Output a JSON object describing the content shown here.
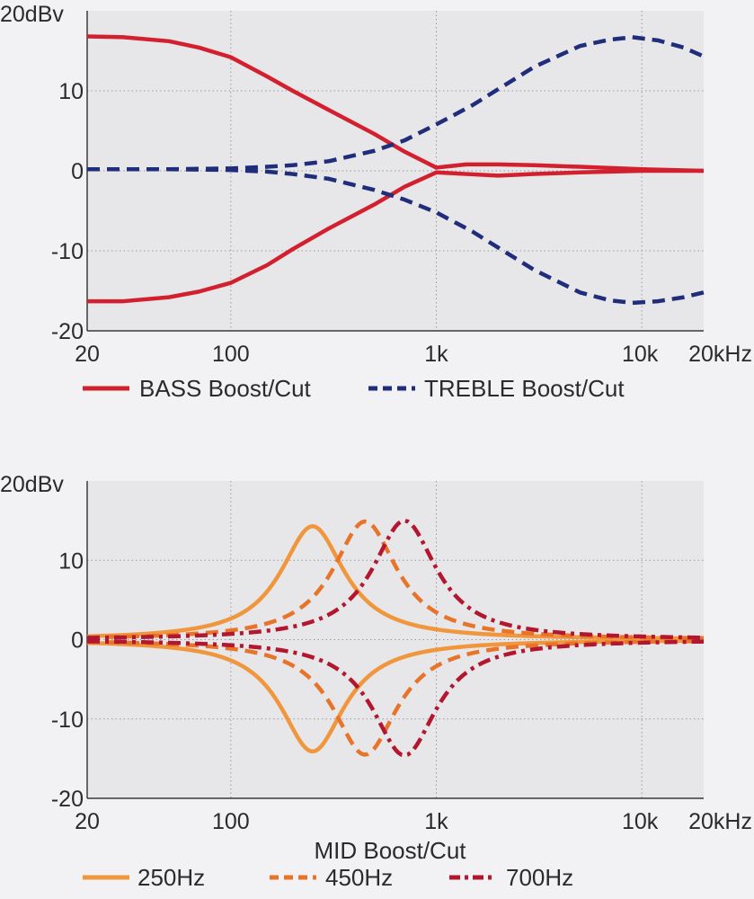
{
  "chart_data": [
    {
      "type": "line",
      "title": "",
      "xscale": "log",
      "xlim": [
        20,
        20000
      ],
      "ylim": [
        -20,
        20
      ],
      "grid": true,
      "legend_position": "bottom",
      "x_ticks": [
        {
          "value": 20,
          "label": "20"
        },
        {
          "value": 100,
          "label": "100"
        },
        {
          "value": 1000,
          "label": "1k"
        },
        {
          "value": 10000,
          "label": "10k"
        },
        {
          "value": 20000,
          "label": "20kHz"
        }
      ],
      "y_ticks": [
        {
          "value": 20,
          "label": "20dBv"
        },
        {
          "value": 10,
          "label": "10"
        },
        {
          "value": 0,
          "label": "0"
        },
        {
          "value": -10,
          "label": "-10"
        },
        {
          "value": -20,
          "label": "-20"
        }
      ],
      "legend": [
        {
          "label": "BASS Boost/Cut",
          "color": "#d3202f",
          "dash": "solid"
        },
        {
          "label": "TREBLE Boost/Cut",
          "color": "#1f2d7a",
          "dash": "dashed"
        }
      ],
      "series": [
        {
          "name": "BASS Boost/Cut",
          "color": "#d3202f",
          "dash": "solid",
          "x": [
            20,
            30,
            50,
            70,
            100,
            150,
            200,
            300,
            500,
            700,
            1000,
            1400,
            2000,
            3000,
            5000,
            10000,
            20000
          ],
          "y": [
            16.8,
            16.7,
            16.2,
            15.4,
            14.2,
            11.8,
            10.0,
            7.6,
            4.6,
            2.4,
            0.4,
            0.8,
            0.8,
            0.7,
            0.5,
            0.2,
            0.0
          ]
        },
        {
          "name": "BASS Boost/Cut",
          "color": "#d3202f",
          "dash": "solid",
          "x": [
            20,
            30,
            50,
            70,
            100,
            150,
            200,
            300,
            500,
            700,
            1000,
            1400,
            2000,
            3000,
            5000,
            10000,
            20000
          ],
          "y": [
            -16.3,
            -16.3,
            -15.8,
            -15.1,
            -14.0,
            -11.8,
            -9.8,
            -7.2,
            -4.2,
            -2.0,
            -0.2,
            -0.4,
            -0.6,
            -0.4,
            -0.2,
            0.0,
            0.0
          ]
        },
        {
          "name": "TREBLE Boost/Cut",
          "color": "#1f2d7a",
          "dash": "dashed",
          "x": [
            20,
            50,
            100,
            150,
            200,
            300,
            500,
            700,
            1000,
            1500,
            2000,
            3000,
            5000,
            7000,
            9000,
            12000,
            16000,
            20000
          ],
          "y": [
            0.2,
            0.2,
            0.3,
            0.5,
            0.7,
            1.2,
            2.5,
            3.8,
            5.8,
            8.2,
            10.2,
            13.0,
            15.6,
            16.4,
            16.7,
            16.3,
            15.4,
            14.3
          ]
        },
        {
          "name": "TREBLE Boost/Cut",
          "color": "#1f2d7a",
          "dash": "dashed",
          "x": [
            20,
            50,
            100,
            150,
            200,
            300,
            500,
            700,
            1000,
            1500,
            2000,
            3000,
            5000,
            7000,
            9000,
            12000,
            16000,
            20000
          ],
          "y": [
            0.2,
            0.2,
            0.1,
            -0.1,
            -0.4,
            -1.0,
            -2.4,
            -3.6,
            -5.2,
            -7.6,
            -9.6,
            -12.4,
            -15.2,
            -16.2,
            -16.5,
            -16.3,
            -15.8,
            -15.2
          ]
        }
      ]
    },
    {
      "type": "line",
      "title": "MID Boost/Cut",
      "xscale": "log",
      "xlim": [
        20,
        20000
      ],
      "ylim": [
        -20,
        20
      ],
      "grid": true,
      "legend_position": "bottom",
      "x_ticks": [
        {
          "value": 20,
          "label": "20"
        },
        {
          "value": 100,
          "label": "100"
        },
        {
          "value": 1000,
          "label": "1k"
        },
        {
          "value": 10000,
          "label": "10k"
        },
        {
          "value": 20000,
          "label": "20kHz"
        }
      ],
      "y_ticks": [
        {
          "value": 20,
          "label": "20dBv"
        },
        {
          "value": 10,
          "label": "10"
        },
        {
          "value": 0,
          "label": "0"
        },
        {
          "value": -10,
          "label": "-10"
        },
        {
          "value": -20,
          "label": "-20"
        }
      ],
      "legend": [
        {
          "label": "250Hz",
          "color": "#f0963c",
          "dash": "solid"
        },
        {
          "label": "450Hz",
          "color": "#e8742a",
          "dash": "dashed"
        },
        {
          "label": "700Hz",
          "color": "#b3172f",
          "dash": "dashdot"
        }
      ],
      "series": [
        {
          "name": "250Hz",
          "color": "#f0963c",
          "dash": "solid",
          "center": 250,
          "peak": 14.3,
          "bandwidth": 0.19
        },
        {
          "name": "250Hz",
          "color": "#f0963c",
          "dash": "solid",
          "center": 250,
          "peak": -14.1,
          "bandwidth": 0.19
        },
        {
          "name": "450Hz",
          "color": "#e8742a",
          "dash": "dashed",
          "center": 450,
          "peak": 14.9,
          "bandwidth": 0.19
        },
        {
          "name": "450Hz",
          "color": "#e8742a",
          "dash": "dashed",
          "center": 450,
          "peak": -14.5,
          "bandwidth": 0.19
        },
        {
          "name": "700Hz",
          "color": "#b3172f",
          "dash": "dashdot",
          "center": 700,
          "peak": 15.0,
          "bandwidth": 0.19
        },
        {
          "name": "700Hz",
          "color": "#b3172f",
          "dash": "dashdot",
          "center": 700,
          "peak": -14.6,
          "bandwidth": 0.19
        }
      ]
    }
  ]
}
